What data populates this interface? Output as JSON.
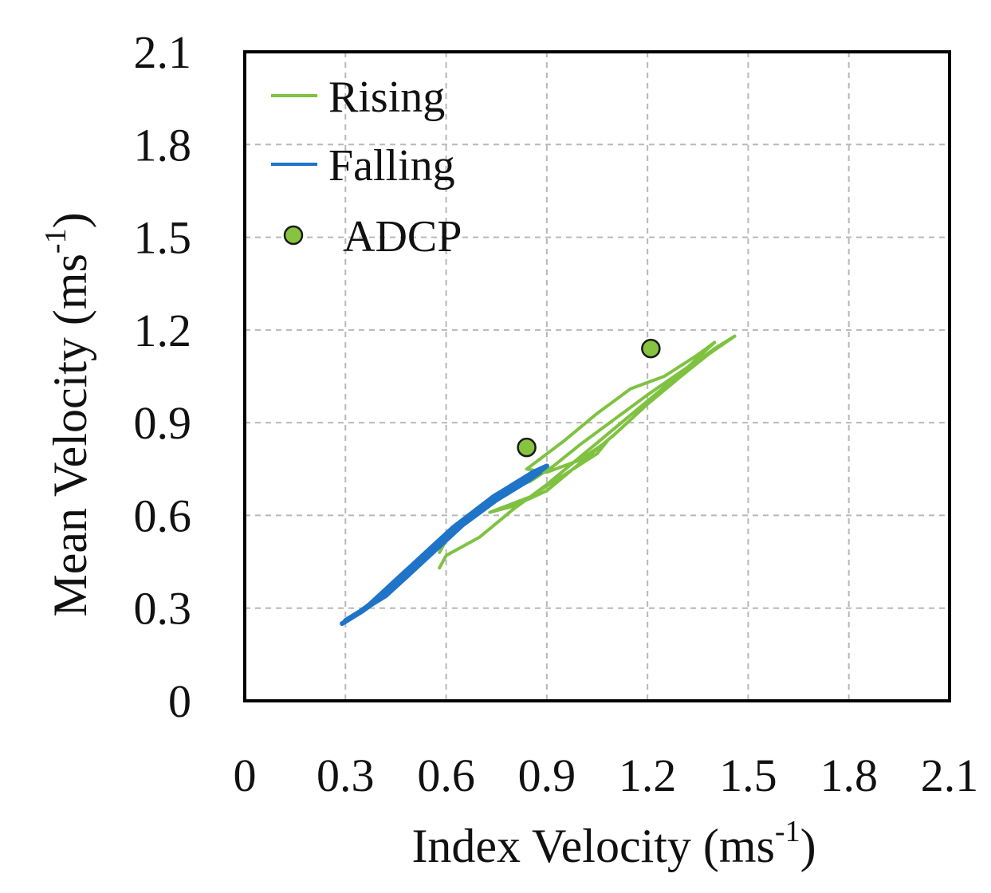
{
  "chart_data": {
    "type": "line",
    "title": "",
    "xlabel_main": "Index Velocity (ms",
    "xlabel_sup": "-1",
    "xlabel_end": ")",
    "ylabel_main": "Mean Velocity (ms",
    "ylabel_sup": "-1",
    "ylabel_end": ")",
    "xlim": [
      0,
      2.1
    ],
    "ylim": [
      0,
      2.1
    ],
    "xticks": [
      "0",
      "0.3",
      "0.6",
      "0.9",
      "1.2",
      "1.5",
      "1.8",
      "2.1"
    ],
    "yticks": [
      "0",
      "0.3",
      "0.6",
      "0.9",
      "1.2",
      "1.5",
      "1.8",
      "2.1"
    ],
    "grid": true,
    "legend_position": "top-left",
    "series": [
      {
        "name": "Rising",
        "kind": "line",
        "color": "#7fc241",
        "points": [
          [
            0.58,
            0.43
          ],
          [
            0.6,
            0.47
          ],
          [
            0.7,
            0.53
          ],
          [
            0.8,
            0.62
          ],
          [
            0.9,
            0.7
          ],
          [
            1.0,
            0.79
          ],
          [
            1.1,
            0.88
          ],
          [
            1.2,
            0.97
          ],
          [
            1.3,
            1.06
          ],
          [
            1.4,
            1.14
          ],
          [
            1.46,
            1.18
          ],
          [
            1.38,
            1.12
          ],
          [
            1.3,
            1.05
          ],
          [
            1.2,
            0.96
          ],
          [
            1.1,
            0.86
          ],
          [
            1.0,
            0.77
          ],
          [
            0.9,
            0.68
          ],
          [
            0.8,
            0.63
          ],
          [
            0.73,
            0.61
          ],
          [
            0.85,
            0.66
          ],
          [
            0.95,
            0.73
          ],
          [
            1.05,
            0.8
          ],
          [
            1.08,
            0.84
          ],
          [
            1.0,
            0.78
          ],
          [
            0.9,
            0.74
          ],
          [
            0.84,
            0.75
          ],
          [
            0.95,
            0.84
          ],
          [
            1.05,
            0.93
          ],
          [
            1.15,
            1.01
          ],
          [
            1.25,
            1.05
          ],
          [
            1.35,
            1.12
          ],
          [
            1.4,
            1.16
          ],
          [
            1.32,
            1.08
          ],
          [
            1.2,
            0.99
          ],
          [
            1.1,
            0.91
          ],
          [
            1.0,
            0.83
          ],
          [
            0.92,
            0.76
          ],
          [
            0.85,
            0.71
          ],
          [
            0.8,
            0.69
          ],
          [
            0.7,
            0.62
          ],
          [
            0.62,
            0.56
          ],
          [
            0.58,
            0.48
          ]
        ]
      },
      {
        "name": "Falling",
        "kind": "line",
        "color": "#1f74c8",
        "points": [
          [
            0.29,
            0.25
          ],
          [
            0.35,
            0.29
          ],
          [
            0.4,
            0.33
          ],
          [
            0.45,
            0.37
          ],
          [
            0.5,
            0.42
          ],
          [
            0.55,
            0.48
          ],
          [
            0.6,
            0.53
          ],
          [
            0.65,
            0.57
          ],
          [
            0.7,
            0.61
          ],
          [
            0.75,
            0.65
          ],
          [
            0.8,
            0.69
          ],
          [
            0.85,
            0.72
          ],
          [
            0.9,
            0.76
          ],
          [
            0.86,
            0.74
          ],
          [
            0.8,
            0.7
          ],
          [
            0.74,
            0.66
          ],
          [
            0.68,
            0.61
          ],
          [
            0.62,
            0.56
          ],
          [
            0.57,
            0.51
          ],
          [
            0.52,
            0.46
          ],
          [
            0.47,
            0.41
          ],
          [
            0.42,
            0.36
          ],
          [
            0.37,
            0.31
          ],
          [
            0.32,
            0.27
          ],
          [
            0.3,
            0.26
          ],
          [
            0.36,
            0.3
          ],
          [
            0.42,
            0.34
          ],
          [
            0.48,
            0.4
          ],
          [
            0.54,
            0.46
          ],
          [
            0.6,
            0.52
          ],
          [
            0.66,
            0.58
          ],
          [
            0.72,
            0.63
          ],
          [
            0.78,
            0.67
          ],
          [
            0.84,
            0.71
          ],
          [
            0.88,
            0.74
          ]
        ]
      },
      {
        "name": "ADCP",
        "kind": "scatter",
        "color": "#86c440",
        "points": [
          [
            0.84,
            0.82
          ],
          [
            1.21,
            1.14
          ]
        ]
      }
    ]
  }
}
